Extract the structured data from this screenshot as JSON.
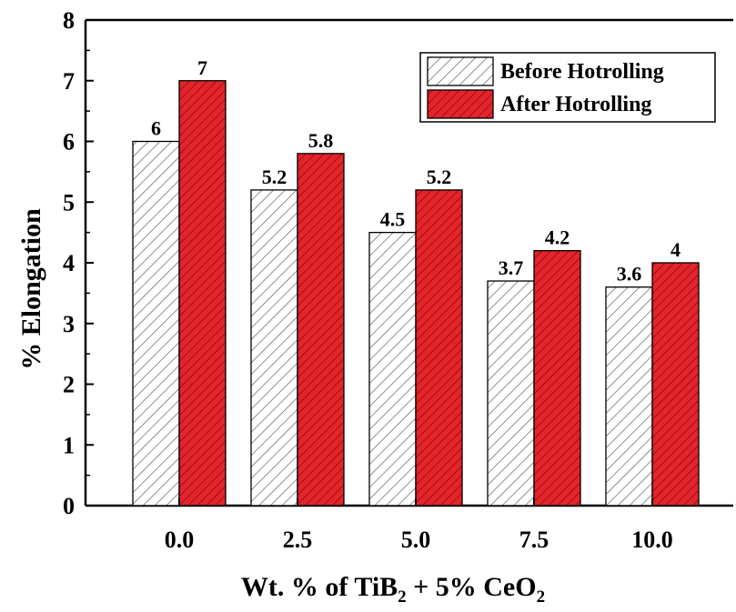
{
  "chart_data": {
    "type": "bar",
    "categories": [
      "0.0",
      "2.5",
      "5.0",
      "7.5",
      "10.0"
    ],
    "series": [
      {
        "name": "Before Hotrolling",
        "values": [
          6,
          5.2,
          4.5,
          3.7,
          3.6
        ],
        "data_labels": [
          "6",
          "5.2",
          "4.5",
          "3.7",
          "3.6"
        ],
        "fill": "#ffffff",
        "hatch": "#555555"
      },
      {
        "name": "After Hotrolling",
        "values": [
          7,
          5.8,
          5.2,
          4.2,
          4
        ],
        "data_labels": [
          "7",
          "5.8",
          "5.2",
          "4.2",
          "4"
        ],
        "fill": "#e3242b",
        "hatch": "#7a0000"
      }
    ],
    "xlabel": {
      "main": "Wt. % of TiB",
      "sub1": "2",
      "mid": " + 5% CeO",
      "sub2": "2"
    },
    "ylabel": "% Elongation",
    "ylim": [
      0,
      8
    ],
    "yticks": [
      "0",
      "1",
      "2",
      "3",
      "4",
      "5",
      "6",
      "7",
      "8"
    ],
    "legend_position": "top-right",
    "grid": false
  }
}
